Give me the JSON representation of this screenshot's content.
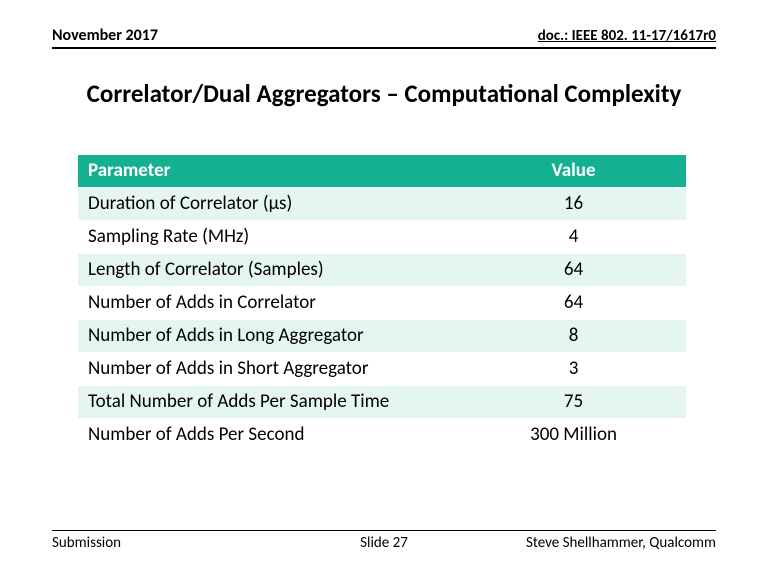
{
  "header": {
    "date": "November 2017",
    "doc": "doc.: IEEE 802. 11-17/1617r0"
  },
  "title": "Correlator/Dual Aggregators – Computational Complexity",
  "table": {
    "columns": [
      "Parameter",
      "Value"
    ],
    "rows": [
      {
        "param": "Duration of Correlator (μs)",
        "value": "16"
      },
      {
        "param": "Sampling Rate (MHz)",
        "value": "4"
      },
      {
        "param": "Length of Correlator (Samples)",
        "value": "64"
      },
      {
        "param": "Number of Adds in Correlator",
        "value": "64"
      },
      {
        "param": "Number of Adds in Long Aggregator",
        "value": "8"
      },
      {
        "param": "Number of Adds in Short Aggregator",
        "value": "3"
      },
      {
        "param": "Total Number of Adds Per Sample Time",
        "value": "75"
      },
      {
        "param": "Number of Adds Per Second",
        "value": "300 Million"
      }
    ],
    "header_bg": "#13b092",
    "header_fg": "#ffffff",
    "row_odd_bg": "#e5f5f1",
    "row_even_bg": "#ffffff",
    "fontsize": 19
  },
  "footer": {
    "left": "Submission",
    "center": "Slide 27",
    "right": "Steve Shellhammer, Qualcomm"
  }
}
